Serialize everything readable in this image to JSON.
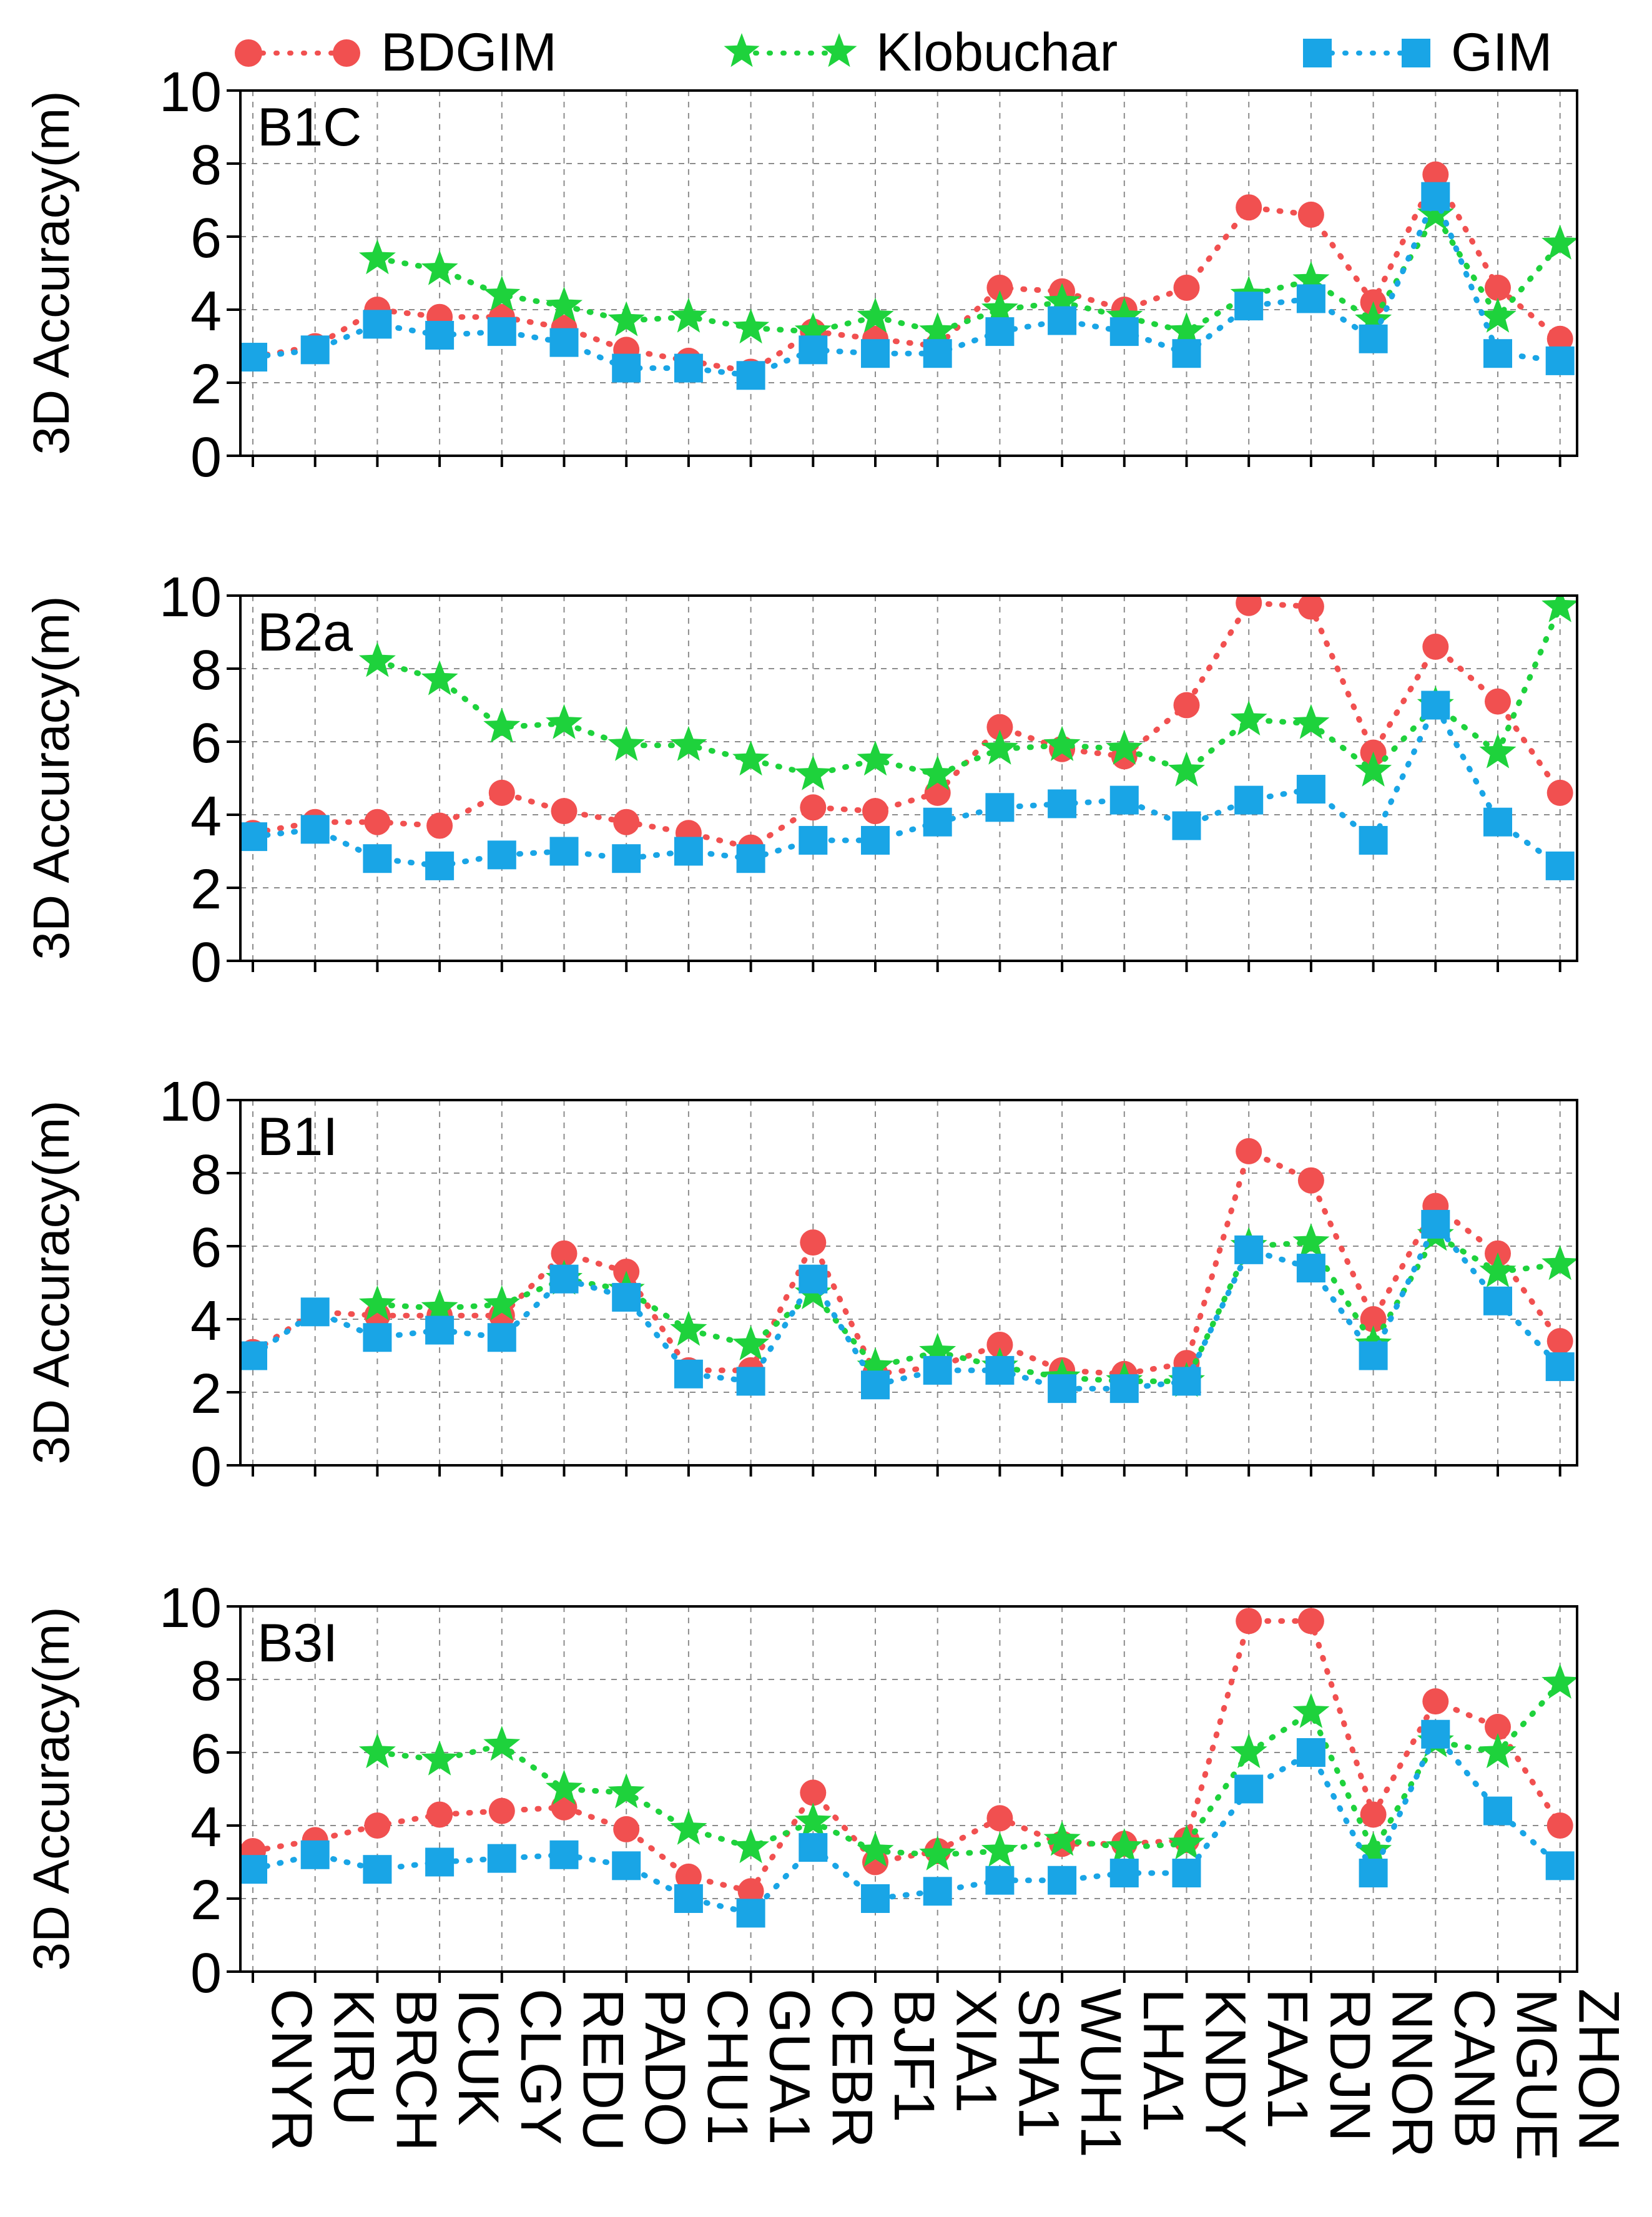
{
  "legend": [
    {
      "label": "BDGIM",
      "color": "#f15050",
      "marker": "circle-marker"
    },
    {
      "label": "Klobuchar",
      "color": "#1ed23c",
      "marker": "star-marker"
    },
    {
      "label": "GIM",
      "color": "#19a5e6",
      "marker": "square-marker"
    }
  ],
  "chart_data": [
    {
      "type": "line",
      "title": "B1C",
      "ylabel": "3D Accuracy(m)",
      "ylim": [
        0,
        10
      ],
      "yticks": [
        "0",
        "2",
        "4",
        "6",
        "8",
        "10"
      ],
      "grid": true,
      "legend_position": "top",
      "categories": [
        "CNYR",
        "KIRU",
        "BRCH",
        "ICUK",
        "CLGY",
        "REDU",
        "PADO",
        "CHU1",
        "GUA1",
        "CEBR",
        "BJF1",
        "XIA1",
        "SHA1",
        "WUH1",
        "LHA1",
        "KNDY",
        "FAA1",
        "RDJN",
        "NNOR",
        "CANB",
        "MGUE",
        "ZHON"
      ],
      "series": [
        {
          "name": "BDGIM",
          "values": [
            2.7,
            3.0,
            4.0,
            3.8,
            3.8,
            3.5,
            2.9,
            2.6,
            2.3,
            3.4,
            3.2,
            3.0,
            4.6,
            4.5,
            4.0,
            4.6,
            6.8,
            6.6,
            4.2,
            7.7,
            4.6,
            3.2
          ]
        },
        {
          "name": "Klobuchar",
          "values": [
            null,
            null,
            5.4,
            5.1,
            4.4,
            4.1,
            3.7,
            3.8,
            3.5,
            3.4,
            3.8,
            3.4,
            4.0,
            4.2,
            3.8,
            3.4,
            4.4,
            4.8,
            3.7,
            6.6,
            3.8,
            5.8
          ]
        },
        {
          "name": "GIM",
          "values": [
            2.7,
            2.9,
            3.6,
            3.3,
            3.4,
            3.1,
            2.4,
            2.4,
            2.2,
            2.9,
            2.8,
            2.8,
            3.4,
            3.7,
            3.4,
            2.8,
            4.1,
            4.3,
            3.2,
            7.1,
            2.8,
            2.6
          ]
        }
      ]
    },
    {
      "type": "line",
      "title": "B2a",
      "ylabel": "3D Accuracy(m)",
      "ylim": [
        0,
        10
      ],
      "yticks": [
        "0",
        "2",
        "4",
        "6",
        "8",
        "10"
      ],
      "grid": true,
      "categories": [
        "CNYR",
        "KIRU",
        "BRCH",
        "ICUK",
        "CLGY",
        "REDU",
        "PADO",
        "CHU1",
        "GUA1",
        "CEBR",
        "BJF1",
        "XIA1",
        "SHA1",
        "WUH1",
        "LHA1",
        "KNDY",
        "FAA1",
        "RDJN",
        "NNOR",
        "CANB",
        "MGUE",
        "ZHON"
      ],
      "series": [
        {
          "name": "BDGIM",
          "values": [
            3.5,
            3.8,
            3.8,
            3.7,
            4.6,
            4.1,
            3.8,
            3.5,
            3.1,
            4.2,
            4.1,
            4.6,
            6.4,
            5.8,
            5.6,
            7.0,
            9.8,
            9.7,
            5.7,
            8.6,
            7.1,
            4.6
          ]
        },
        {
          "name": "Klobuchar",
          "values": [
            null,
            null,
            8.2,
            7.7,
            6.4,
            6.5,
            5.9,
            5.9,
            5.5,
            5.1,
            5.5,
            5.1,
            5.8,
            5.9,
            5.8,
            5.2,
            6.6,
            6.5,
            5.2,
            7.0,
            5.7,
            9.7
          ]
        },
        {
          "name": "GIM",
          "values": [
            3.4,
            3.6,
            2.8,
            2.6,
            2.9,
            3.0,
            2.8,
            3.0,
            2.8,
            3.3,
            3.3,
            3.8,
            4.2,
            4.3,
            4.4,
            3.7,
            4.4,
            4.7,
            3.3,
            7.0,
            3.8,
            2.6
          ]
        }
      ]
    },
    {
      "type": "line",
      "title": "B1I",
      "ylabel": "3D Accuracy(m)",
      "ylim": [
        0,
        10
      ],
      "yticks": [
        "0",
        "2",
        "4",
        "6",
        "8",
        "10"
      ],
      "grid": true,
      "categories": [
        "CNYR",
        "KIRU",
        "BRCH",
        "ICUK",
        "CLGY",
        "REDU",
        "PADO",
        "CHU1",
        "GUA1",
        "CEBR",
        "BJF1",
        "XIA1",
        "SHA1",
        "WUH1",
        "LHA1",
        "KNDY",
        "FAA1",
        "RDJN",
        "NNOR",
        "CANB",
        "MGUE",
        "ZHON"
      ],
      "series": [
        {
          "name": "BDGIM",
          "values": [
            3.1,
            4.2,
            4.1,
            4.1,
            4.1,
            5.8,
            5.3,
            2.6,
            2.6,
            6.1,
            2.5,
            2.7,
            3.3,
            2.6,
            2.5,
            2.8,
            8.6,
            7.8,
            4.0,
            7.1,
            5.8,
            3.4
          ]
        },
        {
          "name": "Klobuchar",
          "values": [
            null,
            null,
            4.4,
            4.3,
            4.4,
            5.1,
            4.8,
            3.7,
            3.3,
            4.7,
            2.7,
            3.1,
            2.7,
            2.4,
            2.3,
            2.3,
            6.0,
            6.1,
            3.3,
            6.3,
            5.3,
            5.5
          ]
        },
        {
          "name": "GIM",
          "values": [
            3.0,
            4.2,
            3.5,
            3.7,
            3.5,
            5.1,
            4.6,
            2.5,
            2.3,
            5.1,
            2.2,
            2.6,
            2.6,
            2.1,
            2.1,
            2.3,
            5.9,
            5.4,
            3.0,
            6.6,
            4.5,
            2.7
          ]
        }
      ]
    },
    {
      "type": "line",
      "title": "B3I",
      "ylabel": "3D Accuracy(m)",
      "ylim": [
        0,
        10
      ],
      "yticks": [
        "0",
        "2",
        "4",
        "6",
        "8",
        "10"
      ],
      "grid": true,
      "categories": [
        "CNYR",
        "KIRU",
        "BRCH",
        "ICUK",
        "CLGY",
        "REDU",
        "PADO",
        "CHU1",
        "GUA1",
        "CEBR",
        "BJF1",
        "XIA1",
        "SHA1",
        "WUH1",
        "LHA1",
        "KNDY",
        "FAA1",
        "RDJN",
        "NNOR",
        "CANB",
        "MGUE",
        "ZHON"
      ],
      "series": [
        {
          "name": "BDGIM",
          "values": [
            3.3,
            3.6,
            4.0,
            4.3,
            4.4,
            4.5,
            3.9,
            2.6,
            2.2,
            4.9,
            3.0,
            3.3,
            4.2,
            3.5,
            3.5,
            3.6,
            9.6,
            9.6,
            4.3,
            7.4,
            6.7,
            4.0
          ]
        },
        {
          "name": "Klobuchar",
          "values": [
            null,
            null,
            6.0,
            5.8,
            6.2,
            5.0,
            4.9,
            3.9,
            3.4,
            4.1,
            3.3,
            3.2,
            3.3,
            3.6,
            3.4,
            3.5,
            6.0,
            7.1,
            3.3,
            6.3,
            6.0,
            7.9
          ]
        },
        {
          "name": "GIM",
          "values": [
            2.8,
            3.2,
            2.8,
            3.0,
            3.1,
            3.2,
            2.9,
            2.0,
            1.6,
            3.4,
            2.0,
            2.2,
            2.5,
            2.5,
            2.7,
            2.7,
            5.0,
            6.0,
            2.7,
            6.5,
            4.4,
            2.9
          ]
        }
      ]
    }
  ]
}
